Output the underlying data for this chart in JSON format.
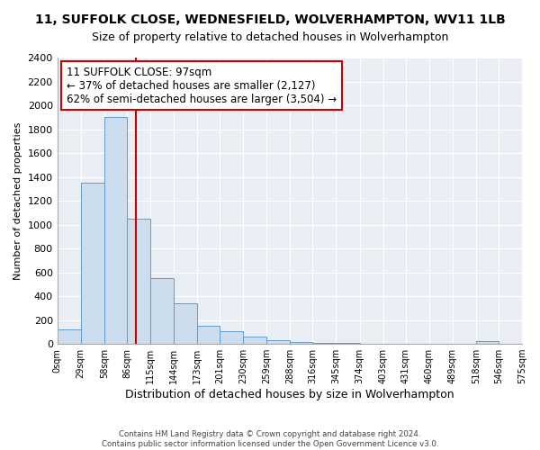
{
  "title": "11, SUFFOLK CLOSE, WEDNESFIELD, WOLVERHAMPTON, WV11 1LB",
  "subtitle": "Size of property relative to detached houses in Wolverhampton",
  "xlabel": "Distribution of detached houses by size in Wolverhampton",
  "ylabel": "Number of detached properties",
  "bin_edges": [
    0,
    29,
    58,
    86,
    115,
    144,
    173,
    201,
    230,
    259,
    288,
    316,
    345,
    374,
    403,
    431,
    460,
    489,
    518,
    546,
    575
  ],
  "bar_heights": [
    120,
    1350,
    1900,
    1050,
    550,
    340,
    155,
    105,
    60,
    30,
    15,
    8,
    5,
    3,
    0,
    0,
    0,
    0,
    20,
    0
  ],
  "bar_color": "#ccdded",
  "bar_edge_color": "#6699cc",
  "vline_x": 97,
  "vline_color": "#cc0000",
  "annotation_text": "11 SUFFOLK CLOSE: 97sqm\n← 37% of detached houses are smaller (2,127)\n62% of semi-detached houses are larger (3,504) →",
  "ylim": [
    0,
    2400
  ],
  "yticks": [
    0,
    200,
    400,
    600,
    800,
    1000,
    1200,
    1400,
    1600,
    1800,
    2000,
    2200,
    2400
  ],
  "tick_labels": [
    "0sqm",
    "29sqm",
    "58sqm",
    "86sqm",
    "115sqm",
    "144sqm",
    "173sqm",
    "201sqm",
    "230sqm",
    "259sqm",
    "288sqm",
    "316sqm",
    "345sqm",
    "374sqm",
    "403sqm",
    "431sqm",
    "460sqm",
    "489sqm",
    "518sqm",
    "546sqm",
    "575sqm"
  ],
  "footer": "Contains HM Land Registry data © Crown copyright and database right 2024.\nContains public sector information licensed under the Open Government Licence v3.0.",
  "plot_bg_color": "#e8eef4",
  "grid_color": "#ffffff",
  "title_fontsize": 10,
  "subtitle_fontsize": 9,
  "ylabel_fontsize": 8,
  "xlabel_fontsize": 9,
  "ytick_fontsize": 8,
  "xtick_fontsize": 7
}
